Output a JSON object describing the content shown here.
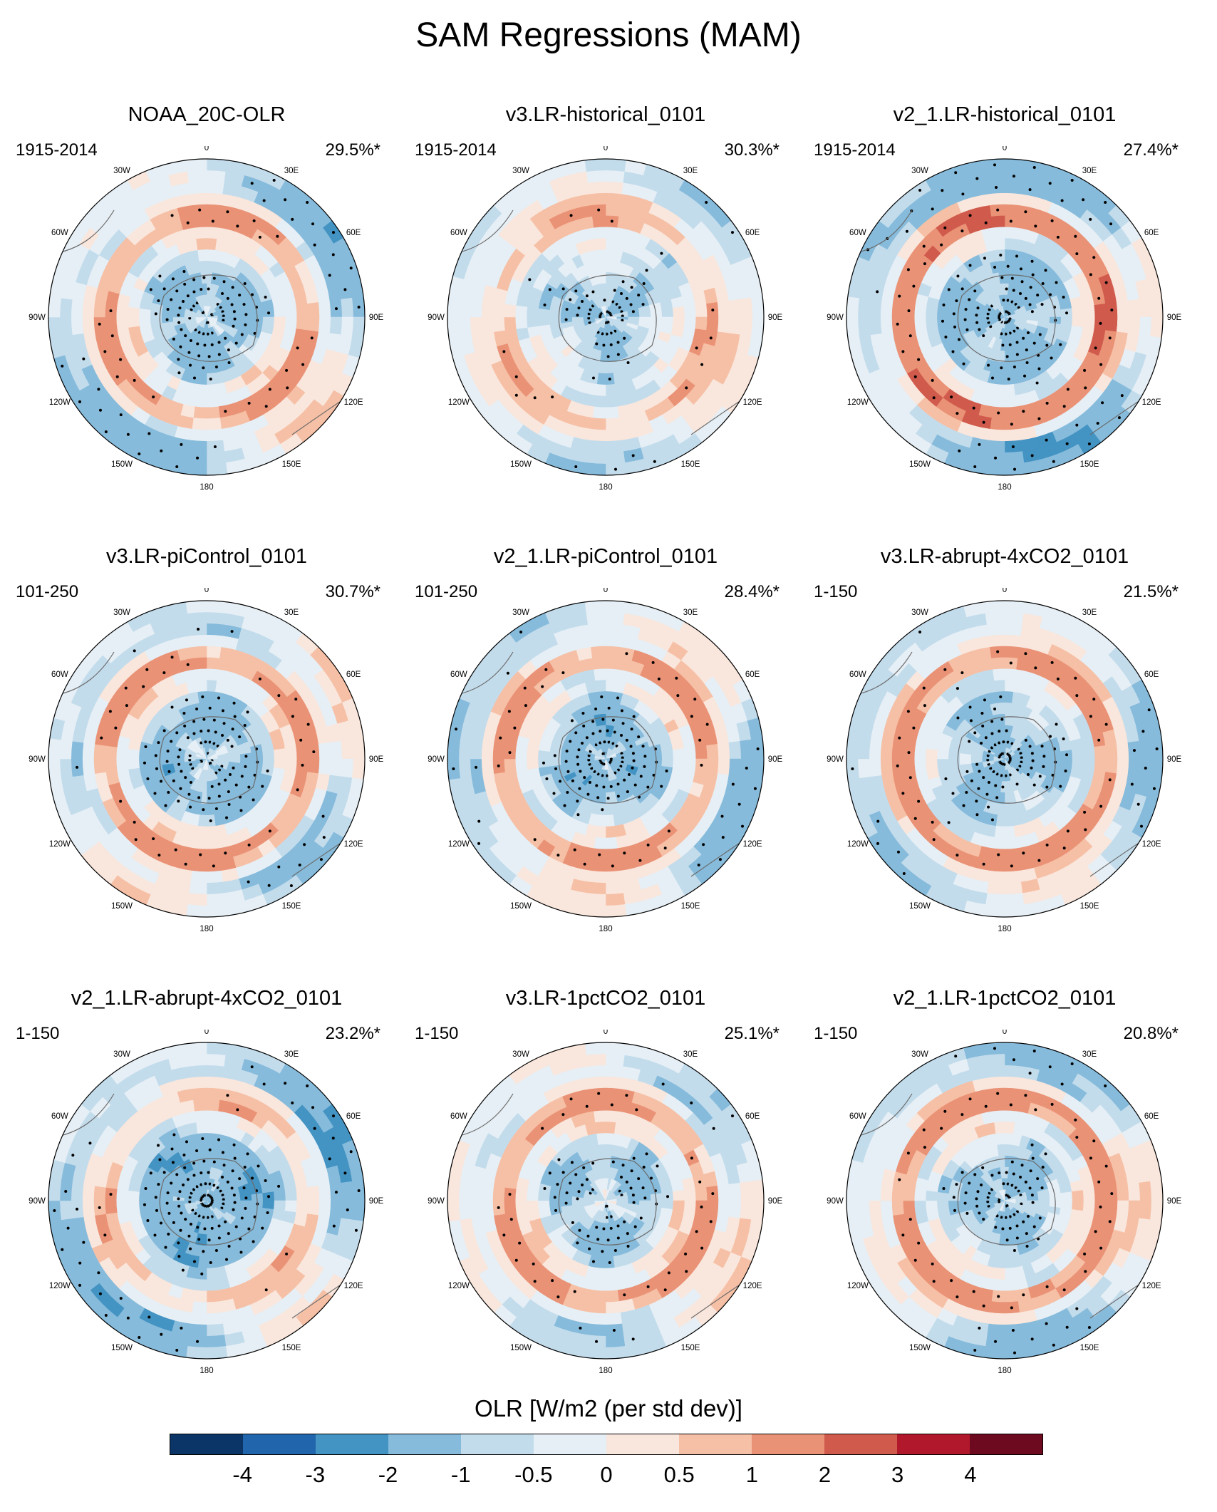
{
  "title": "SAM Regressions (MAM)",
  "colorbar": {
    "title": "OLR [W/m2 (per std dev)]",
    "labels": [
      "-4",
      "-3",
      "-2",
      "-1",
      "-0.5",
      "0",
      "0.5",
      "1",
      "2",
      "3",
      "4"
    ],
    "colors": [
      "#0b3467",
      "#2166ac",
      "#4393c3",
      "#86bbdb",
      "#c3dcec",
      "#e6eff5",
      "#f9e6dc",
      "#f6c0a6",
      "#ea9276",
      "#d05a4c",
      "#b2182b",
      "#6d0a20"
    ]
  },
  "longitude_labels": [
    "0",
    "30E",
    "60E",
    "90E",
    "120E",
    "150E",
    "180",
    "150W",
    "120W",
    "90W",
    "60W",
    "30W"
  ],
  "chart_data": [
    {
      "type": "heatmap",
      "title": "NOAA_20C-OLR",
      "period": "1915-2014",
      "variance_explained": "29.5%*",
      "ring_pattern": {
        "polar_cap": -1.2,
        "mid_latitude_ring": 1.2,
        "outer_ring": -1.8
      }
    },
    {
      "type": "heatmap",
      "title": "v3.LR-historical_0101",
      "period": "1915-2014",
      "variance_explained": "30.3%*",
      "ring_pattern": {
        "polar_cap": -1.0,
        "mid_latitude_ring": 0.7,
        "outer_ring": -0.6
      }
    },
    {
      "type": "heatmap",
      "title": "v2_1.LR-historical_0101",
      "period": "1915-2014",
      "variance_explained": "27.4%*",
      "ring_pattern": {
        "polar_cap": -1.4,
        "mid_latitude_ring": 1.5,
        "outer_ring": -1.6
      }
    },
    {
      "type": "heatmap",
      "title": "v3.LR-piControl_0101",
      "period": "101-250",
      "variance_explained": "30.7%*",
      "ring_pattern": {
        "polar_cap": -1.3,
        "mid_latitude_ring": 1.1,
        "outer_ring": -0.9
      }
    },
    {
      "type": "heatmap",
      "title": "v2_1.LR-piControl_0101",
      "period": "101-250",
      "variance_explained": "28.4%*",
      "ring_pattern": {
        "polar_cap": -1.4,
        "mid_latitude_ring": 1.3,
        "outer_ring": -1.4
      }
    },
    {
      "type": "heatmap",
      "title": "v3.LR-abrupt-4xCO2_0101",
      "period": "1-150",
      "variance_explained": "21.5%*",
      "ring_pattern": {
        "polar_cap": -1.3,
        "mid_latitude_ring": 1.2,
        "outer_ring": -0.9
      }
    },
    {
      "type": "heatmap",
      "title": "v2_1.LR-abrupt-4xCO2_0101",
      "period": "1-150",
      "variance_explained": "23.2%*",
      "ring_pattern": {
        "polar_cap": -1.8,
        "mid_latitude_ring": 0.3,
        "outer_ring": -1.7
      }
    },
    {
      "type": "heatmap",
      "title": "v3.LR-1pctCO2_0101",
      "period": "1-150",
      "variance_explained": "25.1%*",
      "ring_pattern": {
        "polar_cap": -1.0,
        "mid_latitude_ring": 1.2,
        "outer_ring": -0.9
      }
    },
    {
      "type": "heatmap",
      "title": "v2_1.LR-1pctCO2_0101",
      "period": "1-150",
      "variance_explained": "20.8%*",
      "ring_pattern": {
        "polar_cap": -1.1,
        "mid_latitude_ring": 1.5,
        "outer_ring": -1.3
      }
    }
  ]
}
